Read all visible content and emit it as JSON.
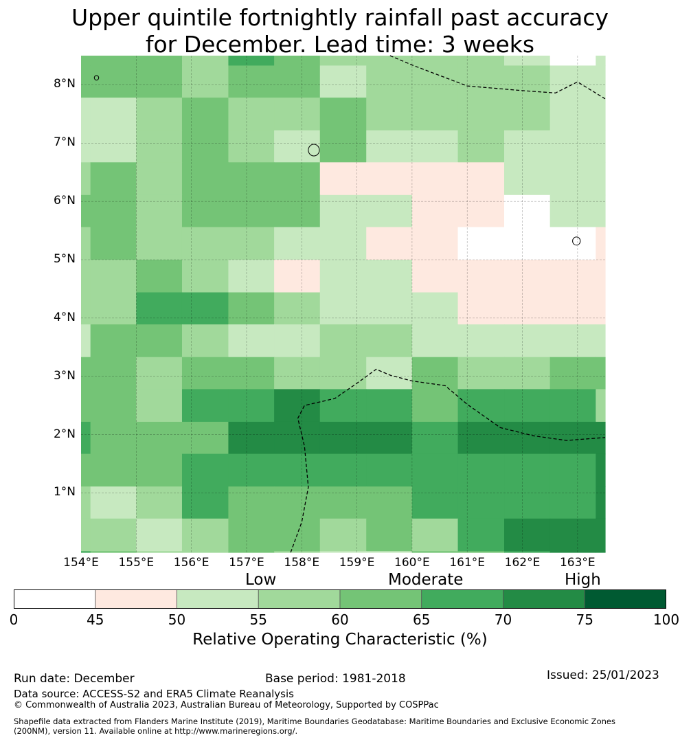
{
  "title": {
    "line1": "Upper quintile fortnightly rainfall past accuracy",
    "line2": "for December. Lead time: 3 weeks"
  },
  "map": {
    "lat_labels": [
      "8°N",
      "7°N",
      "6°N",
      "5°N",
      "4°N",
      "3°N",
      "2°N",
      "1°N"
    ],
    "lon_labels": [
      "154°E",
      "155°E",
      "156°E",
      "157°E",
      "158°E",
      "159°E",
      "160°E",
      "161°E",
      "162°E",
      "163°E"
    ],
    "lon_range": [
      154.0,
      163.5
    ],
    "lat_range": [
      -0.02,
      8.5
    ],
    "column_edges_lon": [
      154.0,
      154.17,
      155.0,
      155.83,
      156.67,
      157.5,
      158.33,
      159.17,
      160.0,
      160.83,
      161.67,
      162.5,
      163.33,
      163.5
    ],
    "row_edges_lat": [
      8.5,
      8.33,
      7.78,
      7.22,
      6.67,
      6.11,
      5.56,
      5.0,
      4.44,
      3.89,
      3.33,
      2.78,
      2.22,
      1.67,
      1.11,
      0.56,
      0.0,
      -0.02
    ],
    "cell_classes_by_row": [
      [
        4,
        4,
        4,
        3,
        5,
        4,
        3,
        3,
        3,
        3,
        2,
        0,
        2
      ],
      [
        4,
        4,
        4,
        3,
        4,
        4,
        2,
        3,
        3,
        3,
        3,
        2,
        2
      ],
      [
        2,
        2,
        3,
        4,
        3,
        3,
        4,
        3,
        3,
        3,
        3,
        2,
        2
      ],
      [
        2,
        2,
        3,
        4,
        3,
        2,
        4,
        2,
        2,
        3,
        2,
        2,
        2
      ],
      [
        3,
        4,
        3,
        4,
        4,
        4,
        1,
        1,
        1,
        1,
        2,
        2,
        2
      ],
      [
        4,
        4,
        3,
        4,
        4,
        4,
        2,
        2,
        1,
        1,
        0,
        2,
        2
      ],
      [
        3,
        4,
        3,
        3,
        3,
        2,
        2,
        1,
        1,
        0,
        -1,
        0,
        1
      ],
      [
        3,
        3,
        4,
        3,
        2,
        1,
        2,
        2,
        1,
        1,
        1,
        1,
        1
      ],
      [
        3,
        3,
        5,
        5,
        4,
        3,
        2,
        2,
        2,
        1,
        1,
        1,
        1
      ],
      [
        2,
        4,
        4,
        3,
        2,
        2,
        3,
        3,
        2,
        2,
        2,
        2,
        2
      ],
      [
        4,
        4,
        3,
        4,
        4,
        3,
        3,
        2,
        4,
        3,
        3,
        4,
        4
      ],
      [
        4,
        4,
        3,
        5,
        5,
        6,
        5,
        5,
        4,
        5,
        5,
        5,
        3
      ],
      [
        5,
        4,
        4,
        4,
        6,
        6,
        6,
        6,
        5,
        6,
        6,
        6,
        6
      ],
      [
        4,
        4,
        4,
        5,
        5,
        5,
        5,
        5,
        5,
        5,
        5,
        5,
        6
      ],
      [
        3,
        2,
        3,
        5,
        4,
        4,
        4,
        4,
        5,
        5,
        5,
        5,
        6
      ],
      [
        3,
        3,
        2,
        3,
        4,
        4,
        3,
        4,
        3,
        5,
        6,
        6,
        6
      ],
      [
        5,
        4,
        3,
        3,
        4,
        3,
        2,
        2,
        4,
        4,
        5,
        6,
        6
      ]
    ],
    "eez_paths": [
      [
        [
          159.6,
          8.5
        ],
        [
          160.0,
          8.34
        ],
        [
          161.0,
          7.98
        ],
        [
          162.0,
          7.9
        ],
        [
          162.6,
          7.86
        ],
        [
          163.0,
          8.05
        ],
        [
          163.5,
          7.76
        ]
      ],
      [
        [
          157.8,
          -0.02
        ],
        [
          158.0,
          0.5
        ],
        [
          158.12,
          1.1
        ],
        [
          158.05,
          1.8
        ],
        [
          157.93,
          2.28
        ],
        [
          158.05,
          2.5
        ],
        [
          158.6,
          2.62
        ],
        [
          159.0,
          2.88
        ],
        [
          159.35,
          3.12
        ],
        [
          159.6,
          3.02
        ],
        [
          160.0,
          2.92
        ],
        [
          160.6,
          2.84
        ],
        [
          161.0,
          2.52
        ],
        [
          161.6,
          2.12
        ],
        [
          162.2,
          1.98
        ],
        [
          162.8,
          1.9
        ],
        [
          163.5,
          1.95
        ]
      ]
    ],
    "islands": [
      {
        "name": "pohnpei",
        "lon": 158.22,
        "lat": 6.88,
        "r": 0.1
      },
      {
        "name": "kosrae",
        "lon": 162.98,
        "lat": 5.32,
        "r": 0.07
      },
      {
        "name": "islet-8n",
        "lon": 154.28,
        "lat": 8.12,
        "r": 0.04
      }
    ]
  },
  "colorbar": {
    "level_labels": {
      "low": "Low",
      "moderate": "Moderate",
      "high": "High"
    },
    "boundaries": [
      0,
      45,
      50,
      55,
      60,
      65,
      70,
      75,
      100
    ],
    "tick_labels": [
      "0",
      "45",
      "50",
      "55",
      "60",
      "65",
      "70",
      "75",
      "100"
    ],
    "colors": [
      "#ffffff",
      "#fee9e0",
      "#c7e9c0",
      "#a1d99b",
      "#74c476",
      "#41ab5d",
      "#238b45",
      "#005a32"
    ],
    "label": "Relative Operating Characteristic (%)"
  },
  "footer": {
    "run_date": "Run date: December",
    "base_period": "Base period: 1981-2018",
    "issued": "Issued: 25/01/2023",
    "source": "Data source: ACCESS-S2 and ERA5 Climate Reanalysis",
    "copyright": "© Commonwealth of Australia 2023, Australian Bureau of Meteorology, Supported by COSPPac",
    "shapefile_line1": "Shapefile data extracted from Flanders Marine Institute (2019), Maritime Boundaries Geodatabase: Maritime Boundaries and Exclusive Economic Zones",
    "shapefile_line2": "(200NM), version 11. Available online at http://www.marineregions.org/."
  }
}
